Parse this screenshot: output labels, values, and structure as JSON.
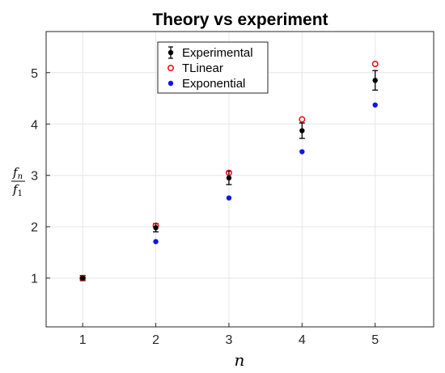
{
  "chart_data": {
    "type": "scatter",
    "title": "Theory vs experiment",
    "xlabel": "n",
    "ylabel": {
      "numerator": "f",
      "numerator_sub": "n",
      "denominator": "f",
      "denominator_sub": "1"
    },
    "xlim": [
      0.5,
      5.8
    ],
    "ylim": [
      0.05,
      5.8
    ],
    "xticks": [
      1,
      2,
      3,
      4,
      5
    ],
    "yticks": [
      1,
      2,
      3,
      4,
      5
    ],
    "grid": true,
    "legend_position": "top-center",
    "series": [
      {
        "name": "Experimental",
        "marker": "filled-dot-errorbar",
        "color": "#000000",
        "x": [
          1,
          2,
          3,
          4,
          5
        ],
        "y": [
          1.0,
          1.98,
          2.95,
          3.87,
          4.85
        ],
        "err": [
          0.05,
          0.08,
          0.13,
          0.15,
          0.19
        ]
      },
      {
        "name": "TLinear",
        "marker": "open-circle",
        "color": "#e8141c",
        "x": [
          1,
          2,
          3,
          4,
          5
        ],
        "y": [
          1.0,
          2.02,
          3.05,
          4.09,
          5.17
        ]
      },
      {
        "name": "Exponential",
        "marker": "filled-dot",
        "color": "#1313e6",
        "x": [
          1,
          2,
          3,
          4,
          5
        ],
        "y": [
          1.0,
          1.71,
          2.56,
          3.46,
          4.37
        ]
      }
    ]
  }
}
